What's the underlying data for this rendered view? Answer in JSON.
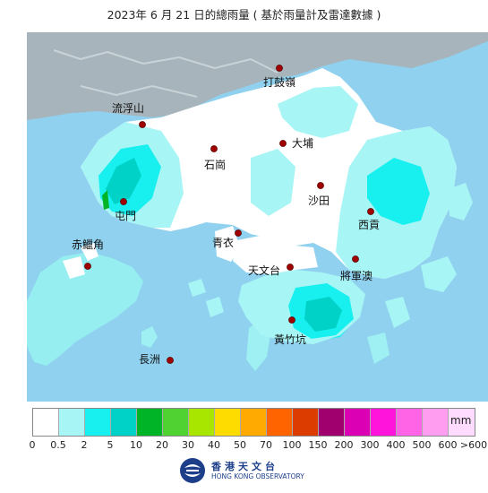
{
  "title": "2023年  6  月 21 日的總雨量 ( 基於雨量計及雷達數據 )",
  "stations": [
    {
      "id": "tai-kwu-ling",
      "name": "打鼓嶺"
    },
    {
      "id": "lau-fau-shan",
      "name": "流浮山"
    },
    {
      "id": "tai-po",
      "name": "大埔"
    },
    {
      "id": "shek-kong",
      "name": "石崗"
    },
    {
      "id": "sha-tin",
      "name": "沙田"
    },
    {
      "id": "tuen-mun",
      "name": "屯門"
    },
    {
      "id": "sai-kung",
      "name": "西貢"
    },
    {
      "id": "tsing-yi",
      "name": "青衣"
    },
    {
      "id": "chek-lap-kok",
      "name": "赤鱲角"
    },
    {
      "id": "observatory",
      "name": "天文台"
    },
    {
      "id": "tseung-kwan-o",
      "name": "將軍澳"
    },
    {
      "id": "wong-chuk-hang",
      "name": "黃竹坑"
    },
    {
      "id": "cheung-chau",
      "name": "長洲"
    }
  ],
  "legend": {
    "unit": "mm",
    "colors": [
      "#ffffff",
      "#a8f5f5",
      "#18f0f0",
      "#00d2c8",
      "#00b428",
      "#50d232",
      "#a8e600",
      "#ffdc00",
      "#ffaa00",
      "#ff6400",
      "#dc3c00",
      "#a0006e",
      "#dc00b4",
      "#ff14dc",
      "#ff64e6",
      "#ff9ef0",
      "#ffdcff"
    ],
    "ticks": [
      "0",
      "0.5",
      "2",
      "5",
      "10",
      "20",
      "30",
      "40",
      "50",
      "70",
      "100",
      "150",
      "200",
      "300",
      "400",
      "500",
      "600",
      ">600"
    ]
  },
  "logo": {
    "name_zh": "香港天文台",
    "name_en": "HONG KONG OBSERVATORY"
  }
}
